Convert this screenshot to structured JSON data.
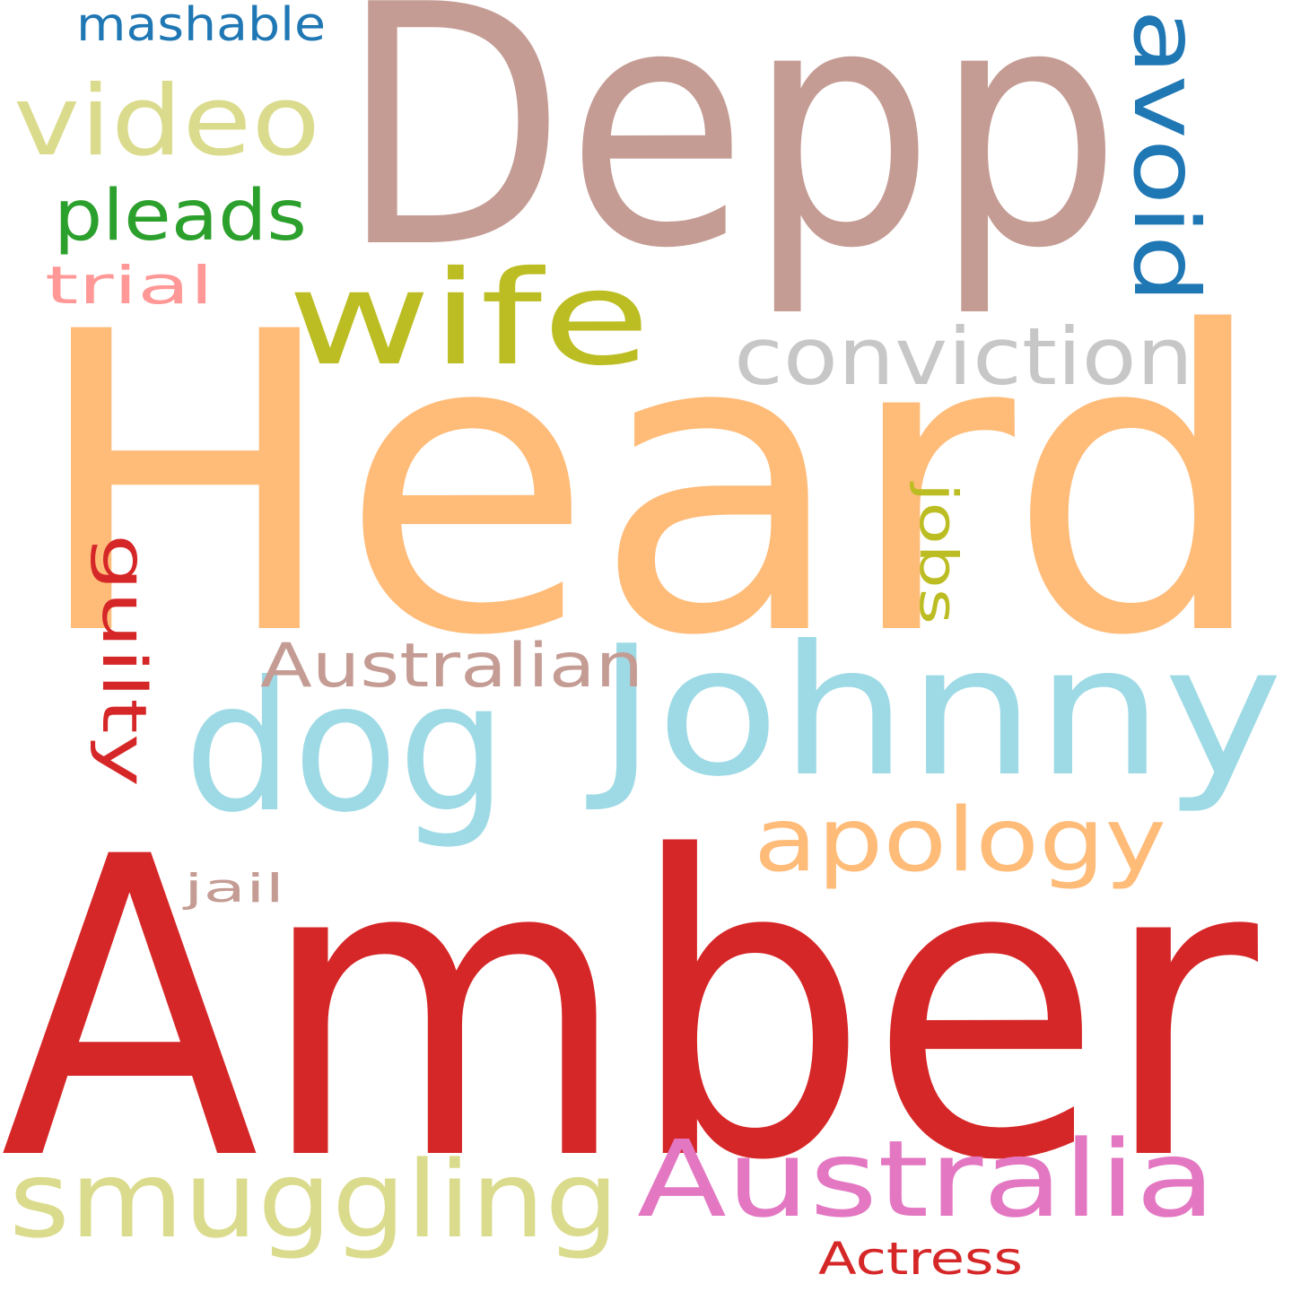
{
  "words": [
    {
      "text": "Depp",
      "color": "#c49c94"
    },
    {
      "text": "Heard",
      "color": "#ffbb78"
    },
    {
      "text": "Amber",
      "color": "#d62728"
    },
    {
      "text": "Johnny",
      "color": "#9edae5"
    },
    {
      "text": "dog",
      "color": "#9edae5"
    },
    {
      "text": "wife",
      "color": "#bcbd22"
    },
    {
      "text": "video",
      "color": "#dbdb8d"
    },
    {
      "text": "avoid",
      "color": "#1f77b4"
    },
    {
      "text": "conviction",
      "color": "#c7c7c7"
    },
    {
      "text": "smuggling",
      "color": "#dbdb8d"
    },
    {
      "text": "Australia",
      "color": "#e377c2"
    },
    {
      "text": "apology",
      "color": "#ffbb78"
    },
    {
      "text": "pleads",
      "color": "#2ca02c"
    },
    {
      "text": "Australian",
      "color": "#c49c94"
    },
    {
      "text": "guilty",
      "color": "#d62728"
    },
    {
      "text": "mashable",
      "color": "#1f77b4"
    },
    {
      "text": "trial",
      "color": "#ff9896"
    },
    {
      "text": "jobs",
      "color": "#bcbd22"
    },
    {
      "text": "jail",
      "color": "#c49c94"
    },
    {
      "text": "Actress",
      "color": "#d62728"
    }
  ]
}
